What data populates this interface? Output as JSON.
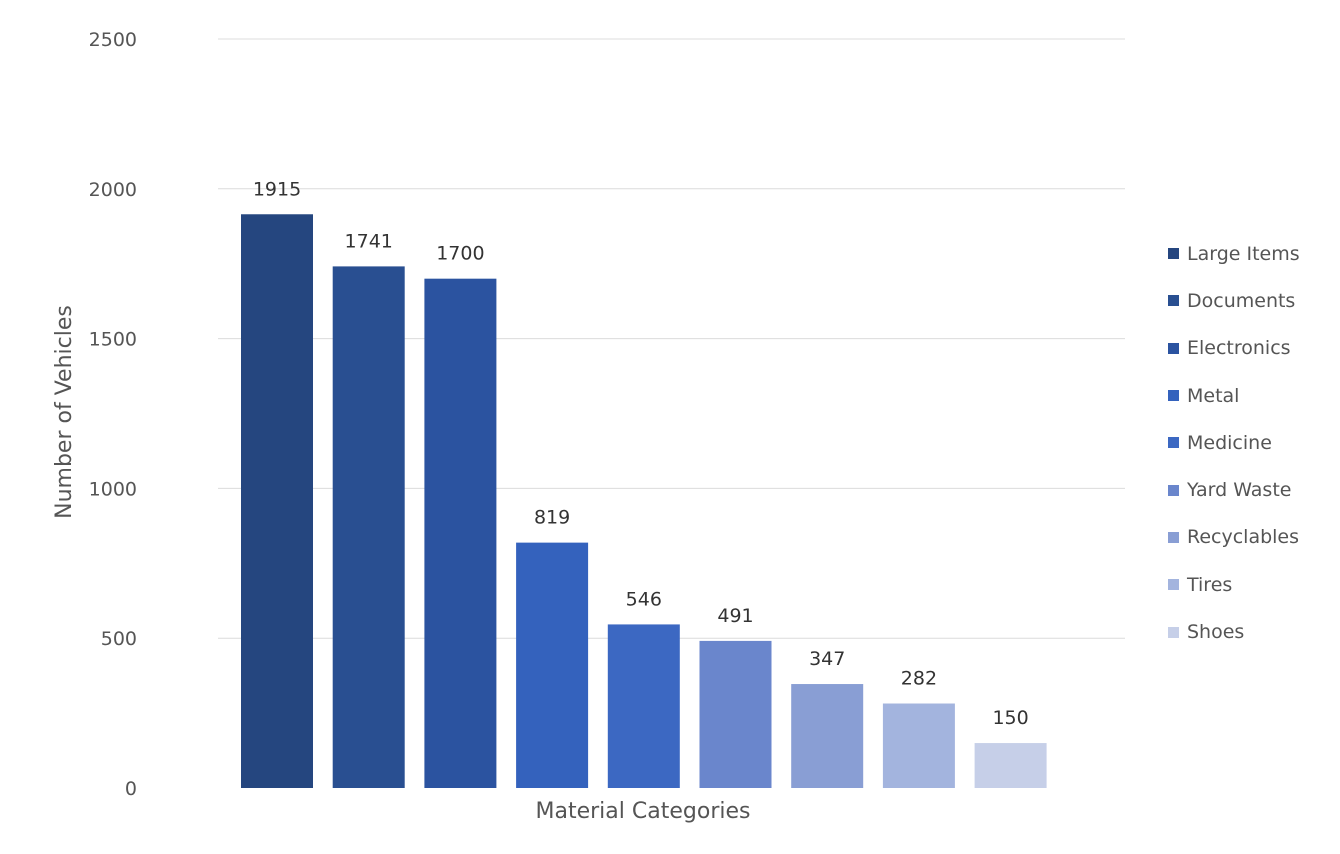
{
  "chart_data": {
    "type": "bar",
    "title": "",
    "xlabel": "Material Categories",
    "ylabel": "Number of Vehicles",
    "ylim": [
      0,
      2500
    ],
    "yticks": [
      {
        "value": 0,
        "label": "0"
      },
      {
        "value": 500,
        "label": "500"
      },
      {
        "value": 1000,
        "label": "1000"
      },
      {
        "value": 1500,
        "label": "1500"
      },
      {
        "value": 2000,
        "label": "2000"
      },
      {
        "value": 2500,
        "label": "2500"
      }
    ],
    "grid": true,
    "legend_position": "right",
    "categories": [
      "Large Items",
      "Documents",
      "Electronics",
      "Metal",
      "Medicine",
      "Yard Waste",
      "Recyclables",
      "Tires",
      "Shoes"
    ],
    "values": [
      1915,
      1741,
      1700,
      819,
      546,
      491,
      347,
      282,
      150
    ],
    "colors": [
      "#25467f",
      "#294f91",
      "#2b53a0",
      "#3462bd",
      "#3c68c2",
      "#6a86cc",
      "#899ed4",
      "#a3b4de",
      "#c6cfe8"
    ]
  }
}
